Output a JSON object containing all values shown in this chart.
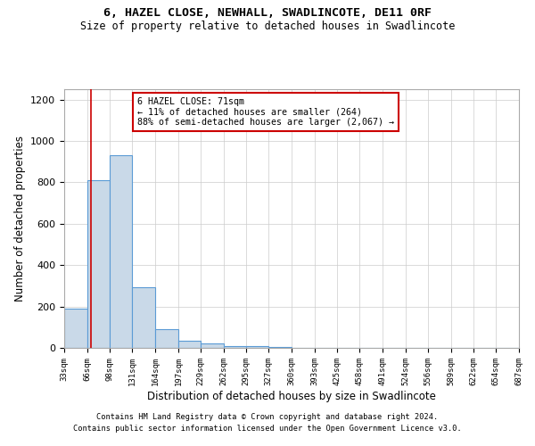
{
  "title": "6, HAZEL CLOSE, NEWHALL, SWADLINCOTE, DE11 0RF",
  "subtitle": "Size of property relative to detached houses in Swadlincote",
  "xlabel": "Distribution of detached houses by size in Swadlincote",
  "ylabel": "Number of detached properties",
  "annotation_line1": "6 HAZEL CLOSE: 71sqm",
  "annotation_line2": "← 11% of detached houses are smaller (264)",
  "annotation_line3": "88% of semi-detached houses are larger (2,067) →",
  "bar_color": "#c9d9e8",
  "bar_edge_color": "#5b9bd5",
  "vline_color": "#cc0000",
  "vline_x": 71,
  "annotation_box_edge": "#cc0000",
  "footer_line1": "Contains HM Land Registry data © Crown copyright and database right 2024.",
  "footer_line2": "Contains public sector information licensed under the Open Government Licence v3.0.",
  "bin_edges": [
    33,
    66,
    98,
    131,
    164,
    197,
    229,
    262,
    295,
    327,
    360,
    393,
    425,
    458,
    491,
    524,
    556,
    589,
    622,
    654,
    687
  ],
  "bar_values": [
    190,
    810,
    930,
    295,
    90,
    35,
    20,
    10,
    10,
    3,
    2,
    1,
    0,
    0,
    0,
    0,
    0,
    0,
    0,
    0
  ],
  "ylim": [
    0,
    1250
  ],
  "yticks": [
    0,
    200,
    400,
    600,
    800,
    1000,
    1200
  ],
  "background_color": "#ffffff",
  "grid_color": "#cccccc"
}
